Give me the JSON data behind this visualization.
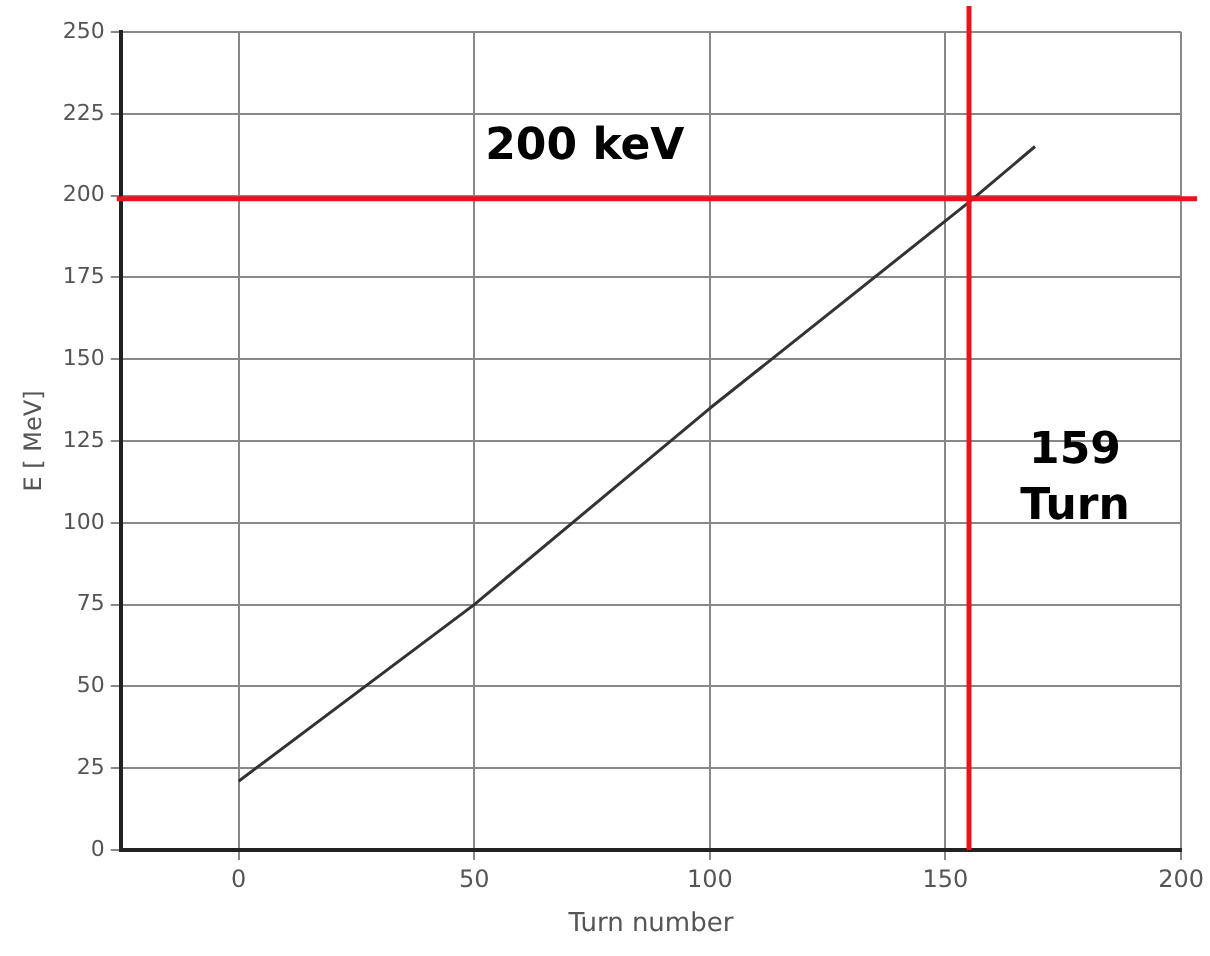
{
  "chart_data": {
    "type": "line",
    "xlabel": "Turn number",
    "ylabel": "E [ MeV]",
    "x": [
      0,
      50,
      100,
      155,
      169
    ],
    "series": [
      {
        "color": "#333333",
        "values": [
          21,
          75,
          135,
          198,
          215
        ]
      }
    ],
    "xlim": [
      -25,
      200
    ],
    "xticks": [
      0,
      50,
      100,
      150,
      200
    ],
    "ylim": [
      0,
      250
    ],
    "yticks": [
      0,
      25,
      50,
      75,
      100,
      125,
      150,
      175,
      200,
      225,
      250
    ],
    "grid": true,
    "legend": false,
    "marker": "none",
    "line_style": "solid",
    "ref_lines": [
      {
        "axis": "y",
        "value": 199,
        "label": "200 keV",
        "color": "#e8141b"
      },
      {
        "axis": "x",
        "value": 155,
        "label": "159\nTurn",
        "color": "#e8141b"
      }
    ]
  }
}
